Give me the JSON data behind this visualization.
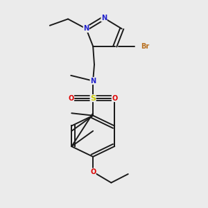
{
  "background_color": "#ebebeb",
  "bond_color": "#1a1a1a",
  "figsize": [
    3.0,
    3.0
  ],
  "dpi": 100,
  "xlim": [
    0.1,
    0.9
  ],
  "ylim": [
    0.02,
    0.98
  ],
  "colors": {
    "N": "#2020cc",
    "O": "#dd0000",
    "S": "#cccc00",
    "Br": "#b87020",
    "C": "#1a1a1a"
  }
}
